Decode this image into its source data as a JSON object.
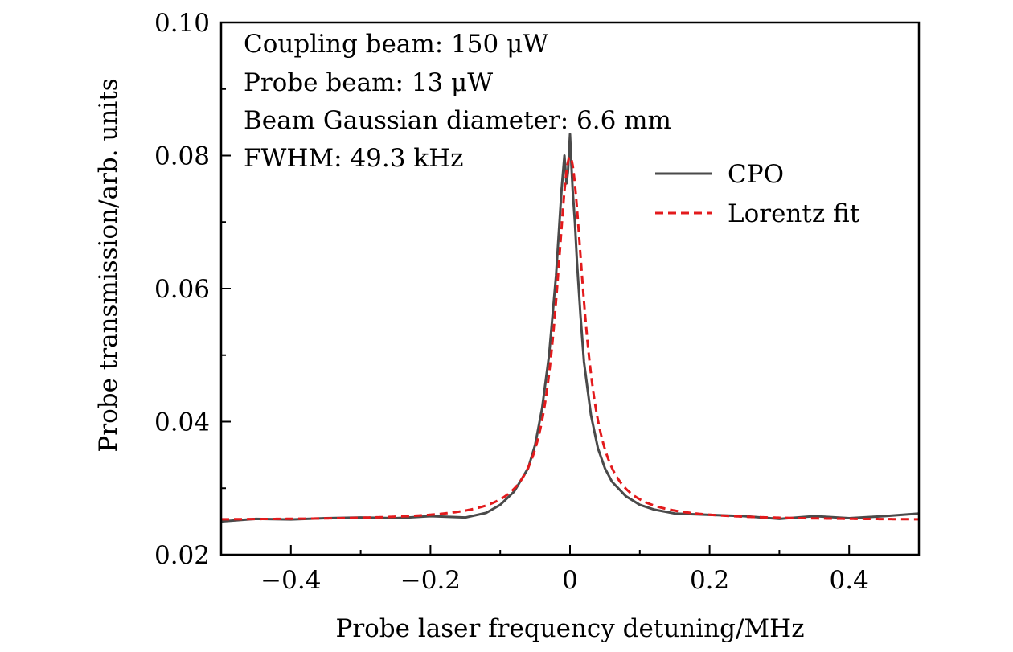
{
  "chart_data": {
    "type": "line",
    "xlabel": "Probe laser frequency detuning/MHz",
    "ylabel": "Probe transmission/arb. units",
    "xlim": [
      -0.5,
      0.5
    ],
    "ylim": [
      0.02,
      0.1
    ],
    "x_ticks": [
      -0.4,
      -0.2,
      0,
      0.2,
      0.4
    ],
    "x_tick_labels": [
      "−0.4",
      "−0.2",
      "0",
      "0.2",
      "0.4"
    ],
    "y_ticks": [
      0.02,
      0.04,
      0.06,
      0.08,
      0.1
    ],
    "y_tick_labels": [
      "0.02",
      "0.04",
      "0.06",
      "0.08",
      "0.10"
    ],
    "annotations": [
      "Coupling beam: 150 μW",
      "Probe beam: 13 μW",
      "Beam Gaussian diameter: 6.6 mm",
      "FWHM: 49.3 kHz"
    ],
    "legend_position": "upper-right",
    "series": [
      {
        "name": "CPO",
        "color": "#4a4a4a",
        "style": "solid",
        "x": [
          -0.5,
          -0.45,
          -0.4,
          -0.35,
          -0.3,
          -0.25,
          -0.2,
          -0.15,
          -0.12,
          -0.1,
          -0.08,
          -0.06,
          -0.05,
          -0.04,
          -0.03,
          -0.02,
          -0.012,
          -0.008,
          -0.005,
          -0.003,
          0.0,
          0.002,
          0.004,
          0.007,
          0.01,
          0.015,
          0.02,
          0.03,
          0.04,
          0.05,
          0.06,
          0.08,
          0.1,
          0.12,
          0.15,
          0.2,
          0.25,
          0.3,
          0.35,
          0.4,
          0.45,
          0.5
        ],
        "y": [
          0.025,
          0.0254,
          0.0253,
          0.0255,
          0.0256,
          0.0255,
          0.0258,
          0.0256,
          0.0263,
          0.0275,
          0.0295,
          0.033,
          0.0365,
          0.042,
          0.05,
          0.062,
          0.075,
          0.08,
          0.0758,
          0.0775,
          0.0832,
          0.0785,
          0.0745,
          0.07,
          0.064,
          0.056,
          0.049,
          0.041,
          0.036,
          0.033,
          0.031,
          0.0288,
          0.0275,
          0.0268,
          0.0262,
          0.026,
          0.0258,
          0.0254,
          0.0258,
          0.0255,
          0.0258,
          0.0262
        ]
      },
      {
        "name": "Lorentz fit",
        "color": "#e31a1c",
        "style": "dashed",
        "lorentz": {
          "x0": 0.0,
          "fwhm": 0.0493,
          "offset": 0.0252,
          "peak": 0.0798
        }
      }
    ]
  }
}
